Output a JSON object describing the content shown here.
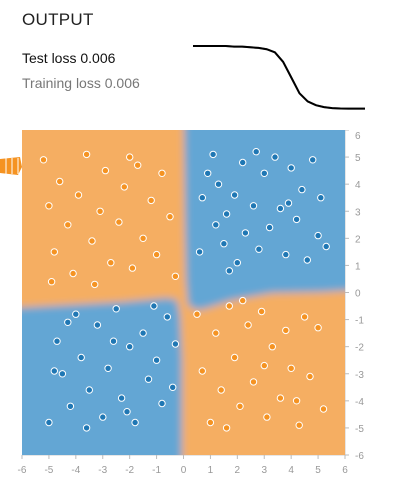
{
  "panel": {
    "title": "OUTPUT",
    "test_loss_label": "Test loss",
    "test_loss_value": "0.006",
    "training_loss_label": "Training loss",
    "training_loss_value": "0.006"
  },
  "colors": {
    "positive_blue": "#1f77b4",
    "negative_orange": "#f59322",
    "region_blue": "#63a6d4",
    "region_orange": "#f5ae62",
    "axis_text": "#999999"
  },
  "loss_curve": {
    "test": [
      1.0,
      1.0,
      1.0,
      1.0,
      1.0,
      0.99,
      0.99,
      0.98,
      0.97,
      0.95,
      0.9,
      0.75,
      0.5,
      0.25,
      0.12,
      0.06,
      0.03,
      0.015,
      0.008,
      0.007,
      0.006,
      0.006
    ],
    "train": [
      1.0,
      1.0,
      1.0,
      1.0,
      1.0,
      0.99,
      0.99,
      0.98,
      0.97,
      0.95,
      0.9,
      0.75,
      0.5,
      0.25,
      0.12,
      0.06,
      0.03,
      0.015,
      0.008,
      0.007,
      0.006,
      0.006
    ]
  },
  "axes": {
    "x_ticks": [
      "-6",
      "-5",
      "-4",
      "-3",
      "-2",
      "-1",
      "0",
      "1",
      "2",
      "3",
      "4",
      "5",
      "6"
    ],
    "y_ticks": [
      "6",
      "5",
      "4",
      "3",
      "2",
      "1",
      "0",
      "-1",
      "-2",
      "-3",
      "-4",
      "-5",
      "-6"
    ]
  },
  "chart_data": {
    "type": "scatter",
    "xlim": [
      -6,
      6
    ],
    "ylim": [
      -6,
      6
    ],
    "series": [
      {
        "name": "",
        "color": "#1f77b4",
        "points": [
          [
            0.6,
            1.5
          ],
          [
            0.7,
            3.5
          ],
          [
            1.1,
            5.1
          ],
          [
            1.2,
            2.5
          ],
          [
            1.3,
            4.0
          ],
          [
            1.5,
            1.8
          ],
          [
            1.6,
            2.9
          ],
          [
            1.9,
            3.6
          ],
          [
            2.0,
            1.1
          ],
          [
            2.2,
            4.8
          ],
          [
            2.3,
            2.2
          ],
          [
            2.6,
            3.2
          ],
          [
            2.8,
            1.6
          ],
          [
            3.0,
            4.4
          ],
          [
            3.2,
            2.4
          ],
          [
            3.4,
            5.0
          ],
          [
            3.6,
            3.1
          ],
          [
            3.8,
            1.4
          ],
          [
            4.0,
            4.6
          ],
          [
            4.2,
            2.7
          ],
          [
            4.4,
            3.8
          ],
          [
            4.6,
            1.2
          ],
          [
            4.8,
            4.9
          ],
          [
            5.0,
            2.1
          ],
          [
            5.1,
            3.5
          ],
          [
            5.3,
            1.7
          ],
          [
            0.9,
            4.4
          ],
          [
            2.7,
            5.2
          ],
          [
            3.9,
            3.3
          ],
          [
            1.7,
            0.8
          ],
          [
            -5.0,
            -4.8
          ],
          [
            -4.7,
            -1.8
          ],
          [
            -4.5,
            -3.0
          ],
          [
            -4.2,
            -4.2
          ],
          [
            -4.0,
            -0.8
          ],
          [
            -3.8,
            -2.4
          ],
          [
            -3.5,
            -3.6
          ],
          [
            -3.2,
            -1.2
          ],
          [
            -3.0,
            -4.6
          ],
          [
            -2.8,
            -2.8
          ],
          [
            -2.5,
            -0.6
          ],
          [
            -2.3,
            -3.9
          ],
          [
            -2.0,
            -2.0
          ],
          [
            -1.8,
            -4.8
          ],
          [
            -1.5,
            -1.5
          ],
          [
            -1.3,
            -3.2
          ],
          [
            -1.0,
            -2.5
          ],
          [
            -0.8,
            -4.1
          ],
          [
            -0.6,
            -0.9
          ],
          [
            -0.4,
            -3.5
          ],
          [
            -0.3,
            -1.9
          ],
          [
            -4.8,
            -2.9
          ],
          [
            -3.6,
            -5.0
          ],
          [
            -2.1,
            -4.4
          ],
          [
            -1.1,
            -0.5
          ],
          [
            -4.3,
            -1.1
          ],
          [
            -2.6,
            -1.8
          ]
        ]
      },
      {
        "name": "",
        "color": "#f59322",
        "points": [
          [
            -5.2,
            4.9
          ],
          [
            -5.0,
            3.2
          ],
          [
            -4.8,
            1.5
          ],
          [
            -4.6,
            4.1
          ],
          [
            -4.3,
            2.5
          ],
          [
            -4.1,
            0.7
          ],
          [
            -3.9,
            3.6
          ],
          [
            -3.6,
            5.1
          ],
          [
            -3.4,
            1.9
          ],
          [
            -3.1,
            3.0
          ],
          [
            -2.9,
            4.5
          ],
          [
            -2.7,
            1.1
          ],
          [
            -2.4,
            2.6
          ],
          [
            -2.2,
            3.9
          ],
          [
            -1.9,
            0.9
          ],
          [
            -1.7,
            4.7
          ],
          [
            -1.5,
            2.0
          ],
          [
            -1.2,
            3.4
          ],
          [
            -1.0,
            1.4
          ],
          [
            -0.8,
            4.4
          ],
          [
            -0.5,
            2.8
          ],
          [
            -0.3,
            0.6
          ],
          [
            -4.9,
            0.4
          ],
          [
            -3.3,
            0.3
          ],
          [
            -2.0,
            5.0
          ],
          [
            0.5,
            -0.8
          ],
          [
            0.7,
            -2.9
          ],
          [
            1.0,
            -4.8
          ],
          [
            1.2,
            -1.5
          ],
          [
            1.4,
            -3.6
          ],
          [
            1.7,
            -0.5
          ],
          [
            1.9,
            -2.4
          ],
          [
            2.1,
            -4.2
          ],
          [
            2.4,
            -1.2
          ],
          [
            2.6,
            -3.3
          ],
          [
            2.9,
            -0.7
          ],
          [
            3.1,
            -4.6
          ],
          [
            3.3,
            -2.0
          ],
          [
            3.6,
            -3.9
          ],
          [
            3.8,
            -1.4
          ],
          [
            4.0,
            -2.8
          ],
          [
            4.3,
            -4.9
          ],
          [
            4.5,
            -0.9
          ],
          [
            4.7,
            -3.1
          ],
          [
            5.0,
            -1.3
          ],
          [
            5.2,
            -4.3
          ],
          [
            1.6,
            -5.0
          ],
          [
            3.0,
            -2.7
          ],
          [
            4.2,
            -4.0
          ],
          [
            2.2,
            -0.3
          ]
        ]
      }
    ]
  }
}
